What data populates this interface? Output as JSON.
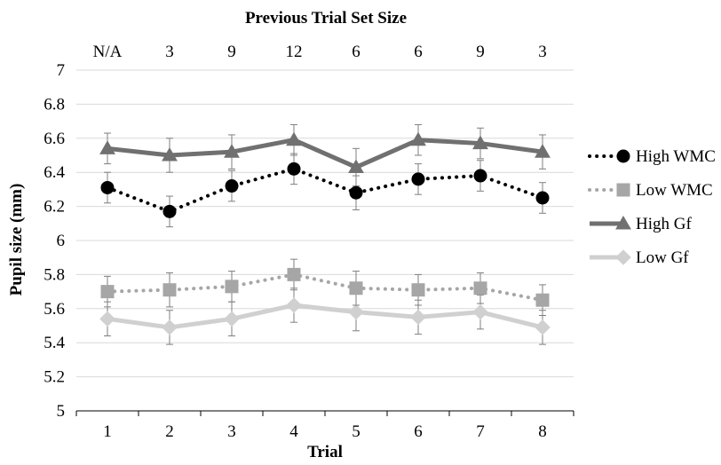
{
  "chart_data": {
    "type": "line",
    "title": "",
    "xlabel": "Trial",
    "ylabel": "Pupil size (mm)",
    "top_axis_title": "Previous Trial Set Size",
    "top_axis_labels": [
      "N/A",
      "3",
      "9",
      "12",
      "6",
      "6",
      "9",
      "3"
    ],
    "categories": [
      "1",
      "2",
      "3",
      "4",
      "5",
      "6",
      "7",
      "8"
    ],
    "ylim": [
      5,
      7
    ],
    "yticks": [
      "5",
      "5.2",
      "5.4",
      "5.6",
      "5.8",
      "6",
      "6.2",
      "6.4",
      "6.6",
      "6.8",
      "7"
    ],
    "grid": "horizontal",
    "legend_position": "right",
    "series": [
      {
        "name": "High WMC",
        "color": "#000000",
        "line": "dotted",
        "marker": "circle",
        "values": [
          6.31,
          6.17,
          6.32,
          6.42,
          6.28,
          6.36,
          6.38,
          6.25
        ],
        "errors": [
          0.09,
          0.09,
          0.09,
          0.09,
          0.1,
          0.09,
          0.09,
          0.09
        ]
      },
      {
        "name": "Low WMC",
        "color": "#a6a6a6",
        "line": "dotted",
        "marker": "square",
        "values": [
          5.7,
          5.71,
          5.73,
          5.8,
          5.72,
          5.71,
          5.72,
          5.65
        ],
        "errors": [
          0.09,
          0.1,
          0.09,
          0.09,
          0.1,
          0.09,
          0.09,
          0.09
        ]
      },
      {
        "name": "High Gf",
        "color": "#707070",
        "line": "solid",
        "marker": "triangle",
        "values": [
          6.54,
          6.5,
          6.52,
          6.59,
          6.43,
          6.59,
          6.57,
          6.52
        ],
        "errors": [
          0.09,
          0.1,
          0.1,
          0.09,
          0.11,
          0.09,
          0.09,
          0.1
        ]
      },
      {
        "name": "Low Gf",
        "color": "#d0d0d0",
        "line": "solid",
        "marker": "diamond",
        "values": [
          5.54,
          5.49,
          5.54,
          5.62,
          5.58,
          5.55,
          5.58,
          5.49
        ],
        "errors": [
          0.1,
          0.1,
          0.1,
          0.1,
          0.11,
          0.1,
          0.1,
          0.1
        ]
      }
    ]
  }
}
